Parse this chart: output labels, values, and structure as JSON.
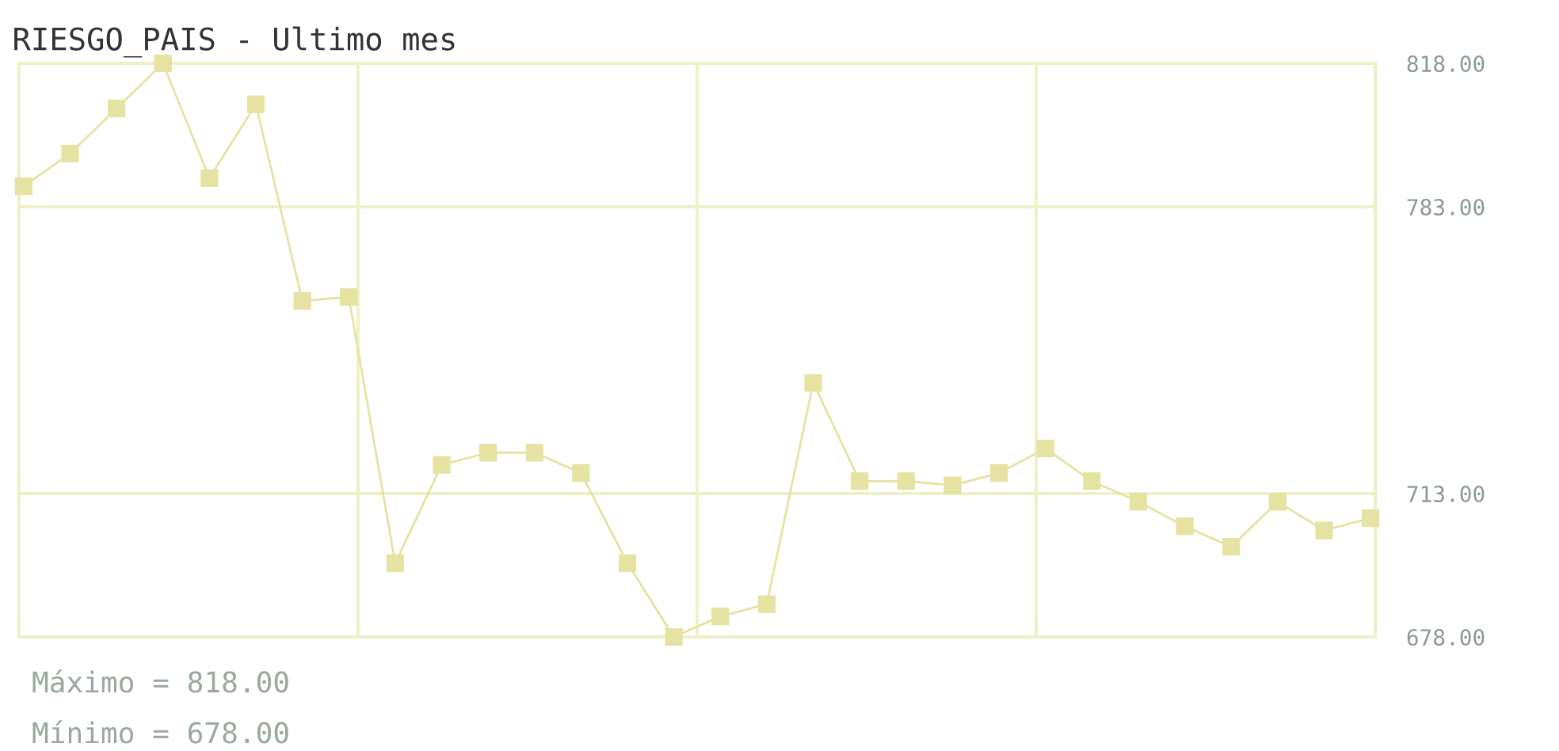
{
  "chart_data": {
    "type": "line",
    "title": "RIESGO_PAIS - Ultimo mes",
    "categories": [
      null,
      null,
      null,
      null,
      null,
      null,
      null,
      null,
      null,
      null,
      null,
      null,
      null,
      null,
      null,
      null,
      null,
      null,
      null,
      null,
      null,
      null,
      null,
      null,
      null,
      null,
      null,
      null,
      null,
      null
    ],
    "series": [
      {
        "color": "#e6e2a2",
        "values": [
          788,
          796,
          807,
          818,
          790,
          808,
          760,
          761,
          696,
          720,
          723,
          723,
          718,
          696,
          678,
          683,
          686,
          740,
          716,
          716,
          715,
          718,
          724,
          716,
          711,
          705,
          700,
          711,
          704,
          707
        ]
      }
    ],
    "ylim": [
      678,
      818
    ],
    "yticks": [
      {
        "value": 678,
        "label": "678.00"
      },
      {
        "value": 713,
        "label": "713.00"
      },
      {
        "value": 783,
        "label": "783.00"
      },
      {
        "value": 818,
        "label": "818.00"
      }
    ],
    "grid": true,
    "marker": "square",
    "line_style": "solid",
    "annotations": [
      "Máximo = 818.00",
      "Mínimo = 678.00"
    ]
  }
}
